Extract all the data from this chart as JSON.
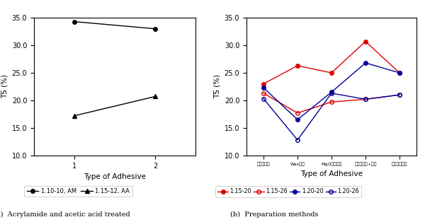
{
  "left_chart": {
    "series": [
      {
        "label": "1.10-10, AM",
        "x": [
          1,
          2
        ],
        "y": [
          34.3,
          33.0
        ],
        "color": "#000000",
        "marker": "o",
        "fillstyle": "full",
        "linestyle": "-"
      },
      {
        "label": "1.15-12, AA",
        "x": [
          1,
          2
        ],
        "y": [
          17.2,
          20.7
        ],
        "color": "#000000",
        "marker": "^",
        "fillstyle": "full",
        "linestyle": "-"
      }
    ],
    "xlabel": "Type of Adhesive",
    "ylabel": "TS (%)",
    "ylim": [
      10.0,
      35.0
    ],
    "yticks": [
      10.0,
      15.0,
      20.0,
      25.0,
      30.0,
      35.0
    ],
    "xticks": [
      1,
      2
    ],
    "caption": "(a)  Acrylamide and acetic acid treated"
  },
  "right_chart": {
    "series": [
      {
        "label": "1.15-20",
        "x_idx": [
          0,
          1,
          2,
          3,
          4
        ],
        "y": [
          23.0,
          26.3,
          25.0,
          30.7,
          25.0
        ],
        "color": "#dd0000",
        "marker": "o",
        "fillstyle": "full",
        "linestyle": "-"
      },
      {
        "label": "1.15-26",
        "x_idx": [
          0,
          1,
          2,
          3,
          4
        ],
        "y": [
          21.3,
          17.7,
          19.7,
          20.2,
          21.0
        ],
        "color": "#dd0000",
        "marker": "o",
        "fillstyle": "none",
        "linestyle": "-"
      },
      {
        "label": "1.20-20",
        "x_idx": [
          0,
          1,
          2,
          3,
          4
        ],
        "y": [
          22.3,
          16.5,
          21.5,
          26.8,
          25.0
        ],
        "color": "#000099",
        "marker": "o",
        "fillstyle": "full",
        "linestyle": "-"
      },
      {
        "label": "1.20-26",
        "x_idx": [
          0,
          1,
          2,
          3,
          4
        ],
        "y": [
          20.3,
          12.8,
          21.3,
          20.2,
          21.0
        ],
        "color": "#000099",
        "marker": "o",
        "fillstyle": "none",
        "linestyle": "-"
      }
    ],
    "x_labels": [
      "첩체억제함",
      "Wax첨가",
      "MgO다체첨가",
      "폴리에스터+요소",
      "요소동시첨가"
    ],
    "xlabel": "Type of Adhesive",
    "ylabel": "TS (%)",
    "ylim": [
      10.0,
      35.0
    ],
    "yticks": [
      10.0,
      15.0,
      20.0,
      25.0,
      30.0,
      35.0
    ],
    "caption": "(b)  Preparation methods"
  }
}
